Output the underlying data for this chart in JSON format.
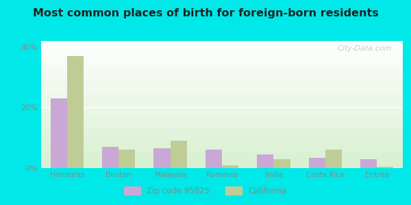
{
  "title": "Most common places of birth for foreign-born residents",
  "categories": [
    "Honduras",
    "Bhutan",
    "Malaysia",
    "Romania",
    "India",
    "Costa Rica",
    "Eritrea"
  ],
  "zip_values": [
    23.0,
    7.0,
    6.5,
    6.0,
    4.5,
    3.5,
    3.0
  ],
  "ca_values": [
    37.0,
    6.0,
    9.0,
    1.0,
    3.0,
    6.0,
    0.5
  ],
  "zip_color": "#c9a8d6",
  "ca_color": "#bfcc96",
  "background_outer": "#00e8e8",
  "background_inner_top": "#ffffff",
  "background_inner_bottom": "#d8f0d0",
  "ylim": [
    0,
    42
  ],
  "yticks": [
    0,
    20,
    40
  ],
  "ytick_labels": [
    "0%",
    "20%",
    "40%"
  ],
  "legend_zip": "Zip code 95825",
  "legend_ca": "California",
  "bar_width": 0.32,
  "title_fontsize": 11.5,
  "watermark": "City-Data.com",
  "axis_label_color": "#888888",
  "tick_label_color": "#888888"
}
